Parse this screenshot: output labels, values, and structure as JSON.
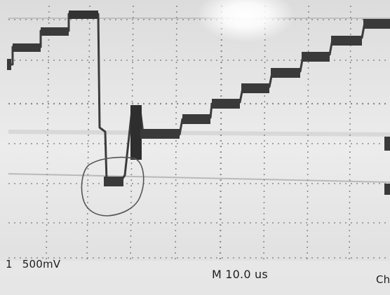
{
  "scope": {
    "channel_number": "1",
    "volts_per_div": "500mV",
    "timebase": "M 10.0 us",
    "corner_label": "Ch"
  },
  "colors": {
    "screen": "#e7e7e7",
    "trace": "#3c3c3c",
    "grid": "#8a8a8a",
    "annotation": "#555555",
    "glare": "#ffffff"
  },
  "annotation": {
    "shape": "hand-drawn-circle",
    "description": "pen marking around the negative glitch"
  }
}
